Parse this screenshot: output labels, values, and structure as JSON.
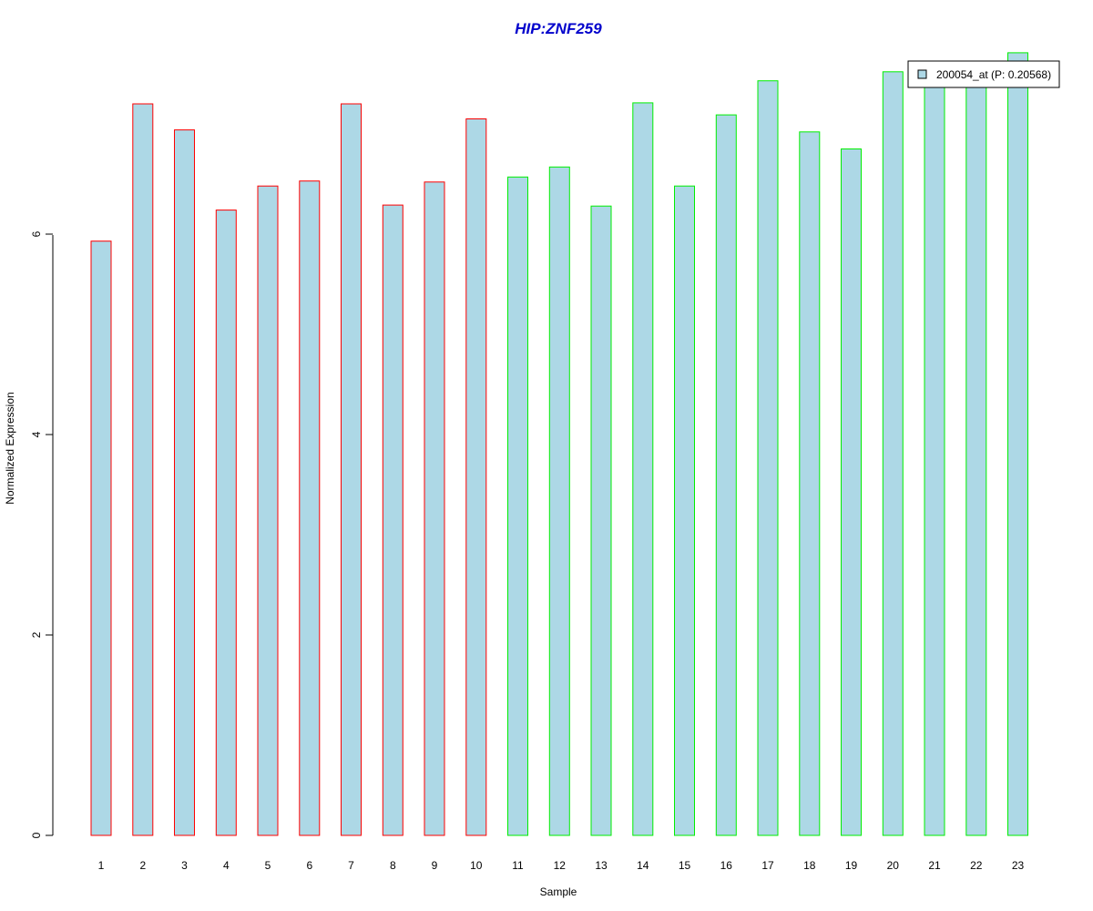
{
  "chart_data": {
    "type": "bar",
    "title": "HIP:ZNF259",
    "xlabel": "Sample",
    "ylabel": "Normalized Expression",
    "categories": [
      "1",
      "2",
      "3",
      "4",
      "5",
      "6",
      "7",
      "8",
      "9",
      "10",
      "11",
      "12",
      "13",
      "14",
      "15",
      "16",
      "17",
      "18",
      "19",
      "20",
      "21",
      "22",
      "23"
    ],
    "series": [
      {
        "name": "200054_at (P: 0.20568)",
        "values": [
          5.93,
          7.3,
          7.04,
          6.24,
          6.48,
          6.53,
          7.3,
          6.29,
          6.52,
          7.15,
          6.57,
          6.67,
          6.28,
          7.31,
          6.48,
          7.19,
          7.53,
          7.02,
          6.85,
          7.62,
          7.62,
          7.62,
          7.81
        ],
        "fill": "#add8e6",
        "border_colors": [
          "#ff0000",
          "#ff0000",
          "#ff0000",
          "#ff0000",
          "#ff0000",
          "#ff0000",
          "#ff0000",
          "#ff0000",
          "#ff0000",
          "#ff0000",
          "#00ee00",
          "#00ee00",
          "#00ee00",
          "#00ee00",
          "#00ee00",
          "#00ee00",
          "#00ee00",
          "#00ee00",
          "#00ee00",
          "#00ee00",
          "#00ee00",
          "#00ee00",
          "#00ee00"
        ]
      }
    ],
    "yticks": [
      "0",
      "2",
      "4",
      "6"
    ],
    "ylim": [
      0,
      7.81
    ],
    "grid": false,
    "legend_position": "top-right",
    "title_color": "#0000cc"
  }
}
